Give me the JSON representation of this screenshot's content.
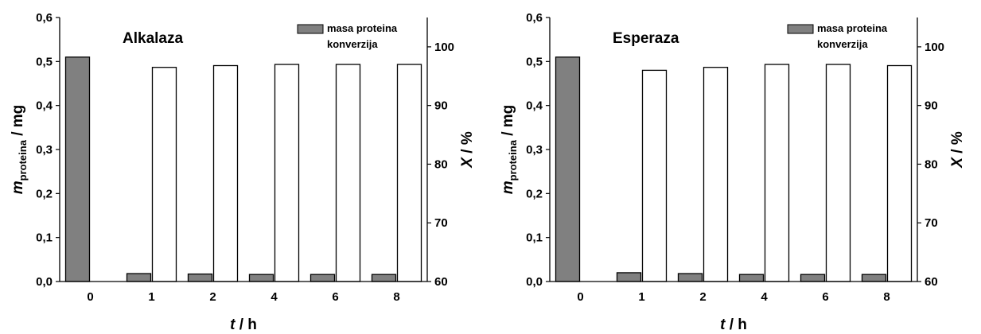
{
  "chart_data": [
    {
      "type": "bar",
      "title": "Alkalaza",
      "categories": [
        "0",
        "1",
        "2",
        "4",
        "6",
        "8"
      ],
      "xlabel": {
        "italic": "t",
        "rest": " / h"
      },
      "ylabel": {
        "italic": "m",
        "sub": "proteina",
        "rest": " / mg"
      },
      "y2label": {
        "italic": "X",
        "rest": " / %"
      },
      "ylim": [
        0,
        0.6
      ],
      "yticks": [
        "0,0",
        "0,1",
        "0,2",
        "0,3",
        "0,4",
        "0,5",
        "0,6"
      ],
      "y2lim": [
        60,
        105
      ],
      "y2ticks": [
        "60",
        "70",
        "80",
        "90",
        "100"
      ],
      "legend_position": "top-right",
      "series": [
        {
          "name": "masa proteina",
          "axis": "left",
          "color": "#808080",
          "values": [
            0.51,
            0.018,
            0.017,
            0.016,
            0.016,
            0.016
          ]
        },
        {
          "name": "konverzija",
          "axis": "right",
          "color": "#ffffff",
          "values": [
            null,
            96.5,
            96.8,
            97.0,
            97.0,
            97.0
          ]
        }
      ]
    },
    {
      "type": "bar",
      "title": "Esperaza",
      "categories": [
        "0",
        "1",
        "2",
        "4",
        "6",
        "8"
      ],
      "xlabel": {
        "italic": "t",
        "rest": " / h"
      },
      "ylabel": {
        "italic": "m",
        "sub": "proteina",
        "rest": " / mg"
      },
      "y2label": {
        "italic": "X",
        "rest": " / %"
      },
      "ylim": [
        0,
        0.6
      ],
      "yticks": [
        "0,0",
        "0,1",
        "0,2",
        "0,3",
        "0,4",
        "0,5",
        "0,6"
      ],
      "y2lim": [
        60,
        105
      ],
      "y2ticks": [
        "60",
        "70",
        "80",
        "90",
        "100"
      ],
      "legend_position": "top-right",
      "series": [
        {
          "name": "masa proteina",
          "axis": "left",
          "color": "#808080",
          "values": [
            0.51,
            0.02,
            0.018,
            0.016,
            0.016,
            0.016
          ]
        },
        {
          "name": "konverzija",
          "axis": "right",
          "color": "#ffffff",
          "values": [
            null,
            96.0,
            96.5,
            97.0,
            97.0,
            96.8
          ]
        }
      ]
    }
  ]
}
